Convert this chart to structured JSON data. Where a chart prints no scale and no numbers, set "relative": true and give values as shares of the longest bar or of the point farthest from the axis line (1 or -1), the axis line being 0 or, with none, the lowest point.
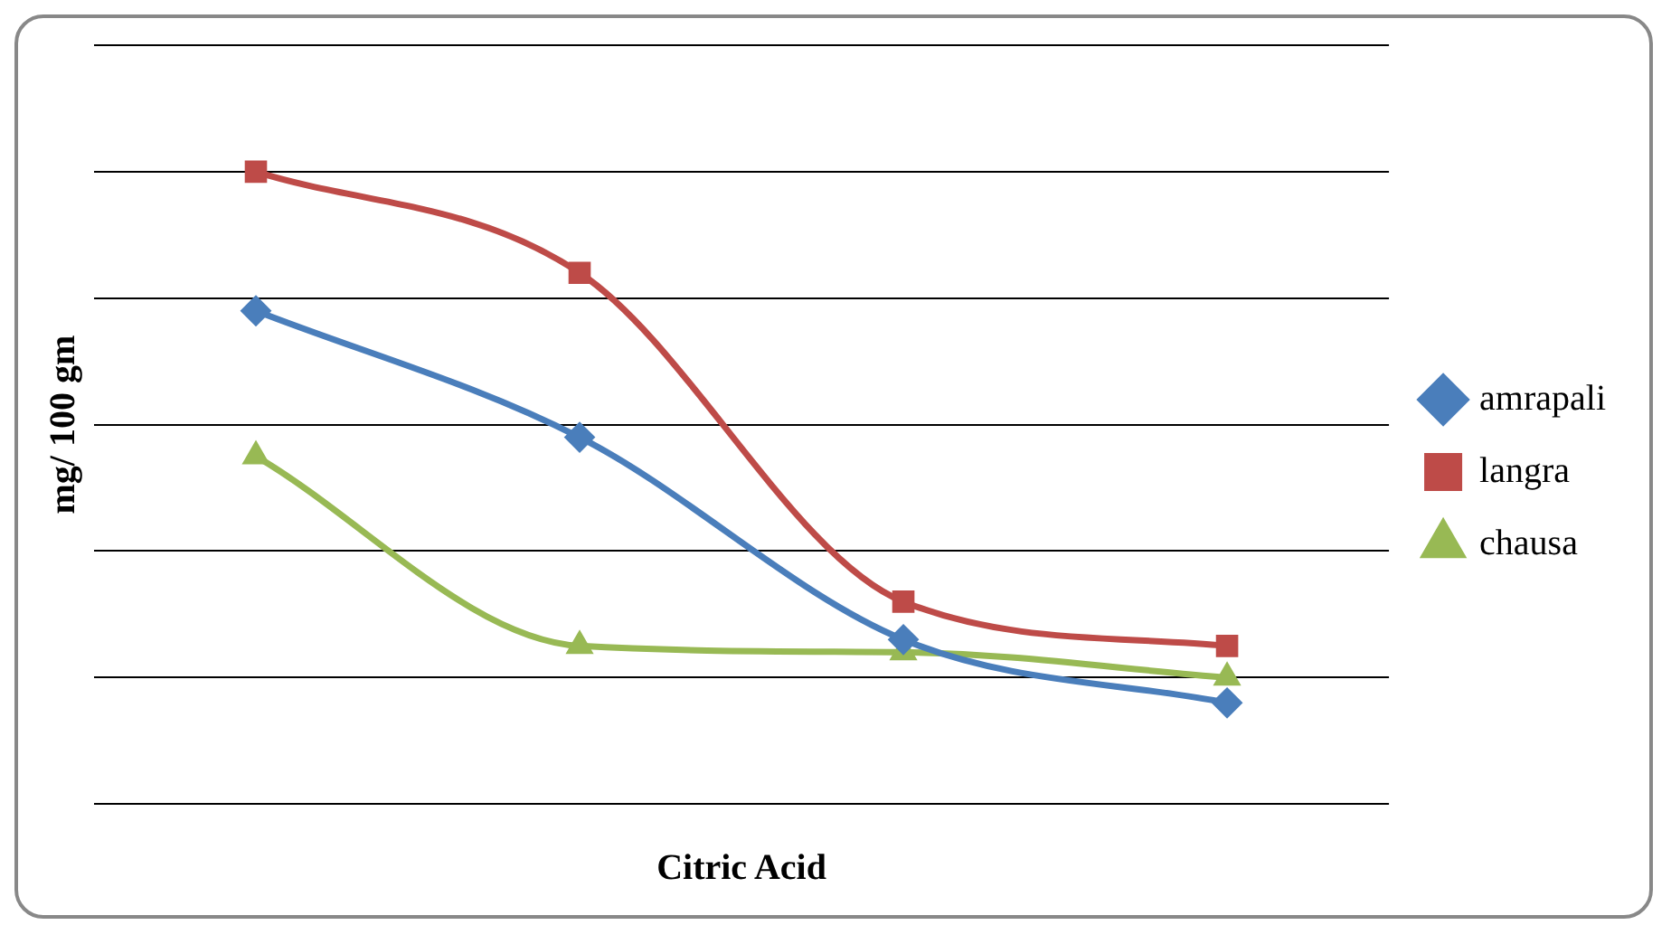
{
  "chart_data": {
    "type": "line",
    "xlabel": "Citric Acid",
    "ylabel": "mg/ 100 gm",
    "categories": [
      null,
      null,
      null,
      null
    ],
    "relative": true,
    "grid": "y",
    "legend": "right",
    "series": [
      {
        "name": "amrapali",
        "color": "#4a7ebb",
        "marker": "diamond",
        "values": [
          0.78,
          0.58,
          0.26,
          0.16
        ]
      },
      {
        "name": "langra",
        "color": "#be4b48",
        "marker": "square",
        "values": [
          1,
          0.84,
          0.32,
          0.25
        ]
      },
      {
        "name": "chausa",
        "color": "#98b954",
        "marker": "triangle",
        "values": [
          0.55,
          0.25,
          0.24,
          0.2
        ]
      }
    ]
  }
}
